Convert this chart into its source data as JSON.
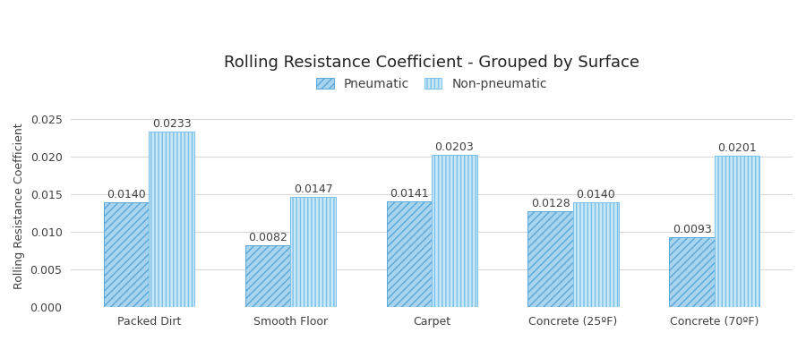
{
  "title": "Rolling Resistance Coefficient - Grouped by Surface",
  "ylabel": "Rolling Resistance Coefficient",
  "categories": [
    "Packed Dirt",
    "Smooth Floor",
    "Carpet",
    "Concrete (25ºF)",
    "Concrete (70ºF)"
  ],
  "pneumatic": [
    0.014,
    0.0082,
    0.0141,
    0.0128,
    0.0093
  ],
  "non_pneumatic": [
    0.0233,
    0.0147,
    0.0203,
    0.014,
    0.0201
  ],
  "pneumatic_color": "#A8D4F0",
  "non_pneumatic_color": "#C8E8F8",
  "pneumatic_hatch_color": "#5BA8D8",
  "non_pneumatic_hatch_color": "#7AC0E8",
  "ylim": [
    0,
    0.027
  ],
  "yticks": [
    0.0,
    0.005,
    0.01,
    0.015,
    0.02,
    0.025
  ],
  "bar_width": 0.32,
  "legend_pneumatic": "Pneumatic",
  "legend_non_pneumatic": "Non-pneumatic",
  "label_fontsize": 9,
  "title_fontsize": 13,
  "axis_label_fontsize": 9,
  "tick_fontsize": 9,
  "background_color": "#FFFFFF",
  "grid_color": "#D8D8D8",
  "text_color": "#404040"
}
